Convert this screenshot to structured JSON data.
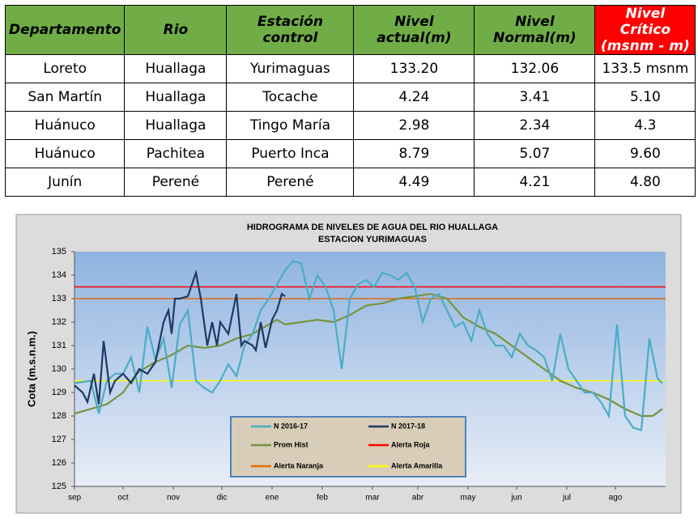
{
  "table": {
    "header": [
      "Departamento",
      "Rio",
      "Estación control",
      "Nivel actual(m)",
      "Nivel Normal(m)",
      "Nivel Crítico (msnm - m)"
    ],
    "rows": [
      [
        "Loreto",
        "Huallaga",
        "Yurimaguas",
        "133.20",
        "132.06",
        "133.5 msnm"
      ],
      [
        "San Martín",
        "Huallaga",
        "Tocache",
        "4.24",
        "3.41",
        "5.10"
      ],
      [
        "Huánuco",
        "Huallaga",
        "Tingo María",
        "2.98",
        "2.34",
        "4.3"
      ],
      [
        "Huánuco",
        "Pachitea",
        "Puerto Inca",
        "8.79",
        "5.07",
        "9.60"
      ],
      [
        "Junín",
        "Perené",
        "Perené",
        "4.49",
        "4.21",
        "4.80"
      ]
    ]
  },
  "chart_data": {
    "type": "line",
    "title": "HIDROGRAMA DE NIVELES DE AGUA DEL RIO HUALLAGA",
    "subtitle": "ESTACION YURIMAGUAS",
    "y_label": "Cota (m.s.n.m.)",
    "xlim": [
      0,
      365
    ],
    "xticks": [
      {
        "value": 0,
        "label": "sep"
      },
      {
        "value": 30,
        "label": "oct"
      },
      {
        "value": 61,
        "label": "nov"
      },
      {
        "value": 91,
        "label": "dic"
      },
      {
        "value": 122,
        "label": "ene"
      },
      {
        "value": 153,
        "label": "feb"
      },
      {
        "value": 184,
        "label": "mar"
      },
      {
        "value": 212,
        "label": "abr"
      },
      {
        "value": 243,
        "label": "may"
      },
      {
        "value": 273,
        "label": "jun"
      },
      {
        "value": 304,
        "label": "jul"
      },
      {
        "value": 334,
        "label": "ago"
      }
    ],
    "ylim": [
      125,
      135
    ],
    "yticks": [
      125,
      126,
      127,
      128,
      129,
      130,
      131,
      132,
      133,
      134,
      135
    ],
    "series": [
      {
        "name": "N 2016-17",
        "color": "#4bacc6",
        "x": [
          0,
          10,
          15,
          20,
          25,
          30,
          35,
          40,
          45,
          50,
          55,
          60,
          65,
          70,
          75,
          80,
          85,
          90,
          95,
          100,
          105,
          110,
          115,
          120,
          125,
          130,
          135,
          140,
          145,
          150,
          155,
          160,
          165,
          170,
          175,
          180,
          185,
          190,
          195,
          200,
          205,
          210,
          215,
          220,
          225,
          230,
          235,
          240,
          245,
          250,
          255,
          260,
          265,
          270,
          275,
          280,
          285,
          290,
          295,
          300,
          305,
          310,
          315,
          320,
          325,
          330,
          335,
          340,
          345,
          350,
          355,
          360,
          363
        ],
        "values": [
          129.4,
          129.5,
          128.1,
          129.5,
          129.8,
          129.8,
          130.5,
          129.0,
          131.8,
          130.4,
          131.3,
          129.2,
          131.9,
          132.5,
          129.5,
          129.2,
          129.0,
          129.5,
          130.2,
          129.7,
          131.0,
          131.5,
          132.5,
          133.0,
          133.6,
          134.2,
          134.6,
          134.5,
          133.0,
          134.0,
          133.5,
          132.5,
          130.0,
          133.0,
          133.6,
          133.8,
          133.5,
          134.1,
          134.0,
          133.8,
          134.1,
          133.5,
          132.0,
          133.0,
          133.2,
          132.5,
          131.8,
          132.0,
          131.2,
          132.5,
          131.5,
          131.0,
          131.0,
          130.5,
          131.5,
          131.0,
          130.8,
          130.5,
          129.5,
          131.5,
          130.0,
          129.5,
          129.0,
          129.0,
          128.6,
          128.0,
          131.9,
          128.0,
          127.5,
          127.4,
          131.3,
          129.6,
          129.4
        ]
      },
      {
        "name": "N 2017-18",
        "color": "#1f3864",
        "x": [
          0,
          5,
          8,
          12,
          15,
          18,
          22,
          25,
          30,
          35,
          40,
          45,
          50,
          55,
          58,
          60,
          62,
          65,
          70,
          75,
          78,
          82,
          85,
          88,
          90,
          95,
          100,
          103,
          105,
          110,
          112,
          115,
          118,
          122,
          125,
          128,
          130
        ],
        "values": [
          129.3,
          129.0,
          128.6,
          129.8,
          128.5,
          131.2,
          129.0,
          129.5,
          129.8,
          129.4,
          130.0,
          129.8,
          130.3,
          132.0,
          132.5,
          131.5,
          133.0,
          133.0,
          133.1,
          134.1,
          133.0,
          131.0,
          132.0,
          131.0,
          132.0,
          131.5,
          133.2,
          131.0,
          131.2,
          131.0,
          130.8,
          132.0,
          130.9,
          132.1,
          132.5,
          133.2,
          133.1
        ]
      },
      {
        "name": "Prom Hist",
        "color": "#77933c",
        "x": [
          0,
          10,
          20,
          30,
          35,
          40,
          50,
          60,
          70,
          80,
          90,
          100,
          110,
          120,
          125,
          130,
          140,
          150,
          160,
          170,
          180,
          190,
          200,
          210,
          220,
          230,
          240,
          250,
          260,
          270,
          280,
          290,
          300,
          310,
          320,
          330,
          340,
          350,
          357,
          363
        ],
        "values": [
          128.1,
          128.3,
          128.5,
          129.0,
          129.5,
          129.9,
          130.3,
          130.6,
          131.0,
          130.9,
          131.0,
          131.3,
          131.5,
          131.9,
          132.1,
          131.9,
          132.0,
          132.1,
          132.0,
          132.3,
          132.7,
          132.8,
          133.0,
          133.1,
          133.2,
          133.0,
          132.2,
          131.8,
          131.5,
          131.0,
          130.5,
          130.0,
          129.5,
          129.2,
          129.0,
          128.7,
          128.3,
          128.0,
          128.0,
          128.3
        ]
      },
      {
        "name": "Alerta Roja",
        "color": "#ff0000",
        "x": [
          0,
          365
        ],
        "values": [
          133.5,
          133.5
        ]
      },
      {
        "name": "Alerta Naranja",
        "color": "#e46c0a",
        "x": [
          0,
          365
        ],
        "values": [
          133,
          133
        ]
      },
      {
        "name": "Alerta Amarilla",
        "color": "#ffff00",
        "x": [
          0,
          365
        ],
        "values": [
          129.5,
          129.5
        ]
      }
    ]
  }
}
